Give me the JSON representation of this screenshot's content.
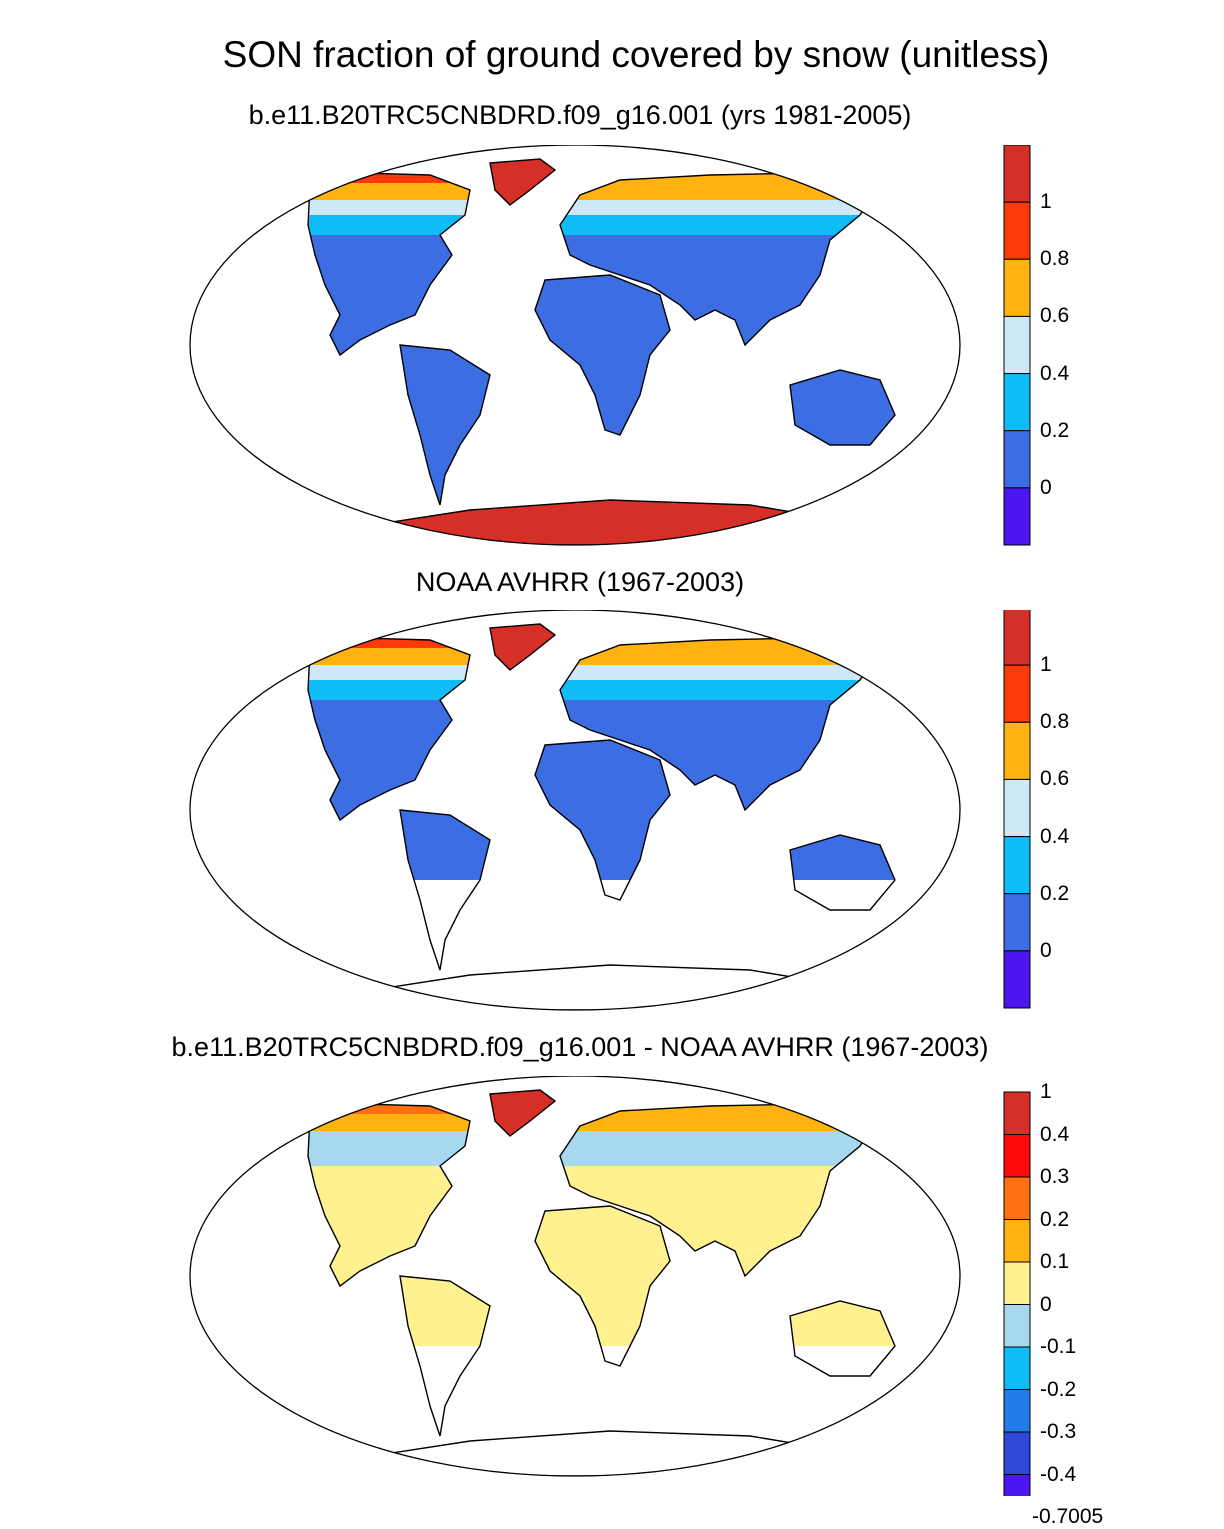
{
  "title": "SON fraction of ground covered by snow (unitless)",
  "panels": [
    {
      "subtitle": "b.e11.B20TRC5CNBDRD.f09_g16.001 (yrs 1981-2005)",
      "colorbar": {
        "labels": [
          "1",
          "0.8",
          "0.6",
          "0.4",
          "0.2",
          "0"
        ],
        "colors": [
          "#d62f27",
          "#ff3a0a",
          "#ffb310",
          "#cde8f6",
          "#10bcf6",
          "#3d6de3",
          "#4c16f2"
        ]
      },
      "coverage": "global",
      "palette": {
        "land": "#3d6de3",
        "high": "#ffb310",
        "mid": "#10bcf6",
        "light": "#cde8f6",
        "top": "#d62f27",
        "red2": "#ff3a0a"
      }
    },
    {
      "subtitle": "NOAA AVHRR (1967-2003)",
      "colorbar": {
        "labels": [
          "1",
          "0.8",
          "0.6",
          "0.4",
          "0.2",
          "0"
        ],
        "colors": [
          "#d62f27",
          "#ff3a0a",
          "#ffb310",
          "#cde8f6",
          "#10bcf6",
          "#3d6de3",
          "#4c16f2"
        ]
      },
      "coverage": "northern-only",
      "palette": {
        "land": "#3d6de3",
        "high": "#ffb310",
        "mid": "#10bcf6",
        "light": "#cde8f6",
        "top": "#d62f27",
        "red2": "#ff3a0a"
      }
    },
    {
      "subtitle": "b.e11.B20TRC5CNBDRD.f09_g16.001 - NOAA AVHRR (1967-2003)",
      "colorbar": {
        "labels": [
          "1",
          "0.4",
          "0.3",
          "0.2",
          "0.1",
          "0",
          "-0.1",
          "-0.2",
          "-0.3",
          "-0.4",
          "-0.7005"
        ],
        "colors": [
          "#d62f27",
          "#ff0a0a",
          "#ff7010",
          "#ffb310",
          "#fff090",
          "#a8d8f0",
          "#10bcf6",
          "#1f7ce8",
          "#2e49d8",
          "#4c16f2"
        ]
      },
      "coverage": "northern-only",
      "palette": {
        "land": "#fff090",
        "high": "#ffb310",
        "mid": "#a8d8f0",
        "light": "#a8d8f0",
        "top": "#d62f27",
        "red2": "#ff7010"
      }
    }
  ]
}
